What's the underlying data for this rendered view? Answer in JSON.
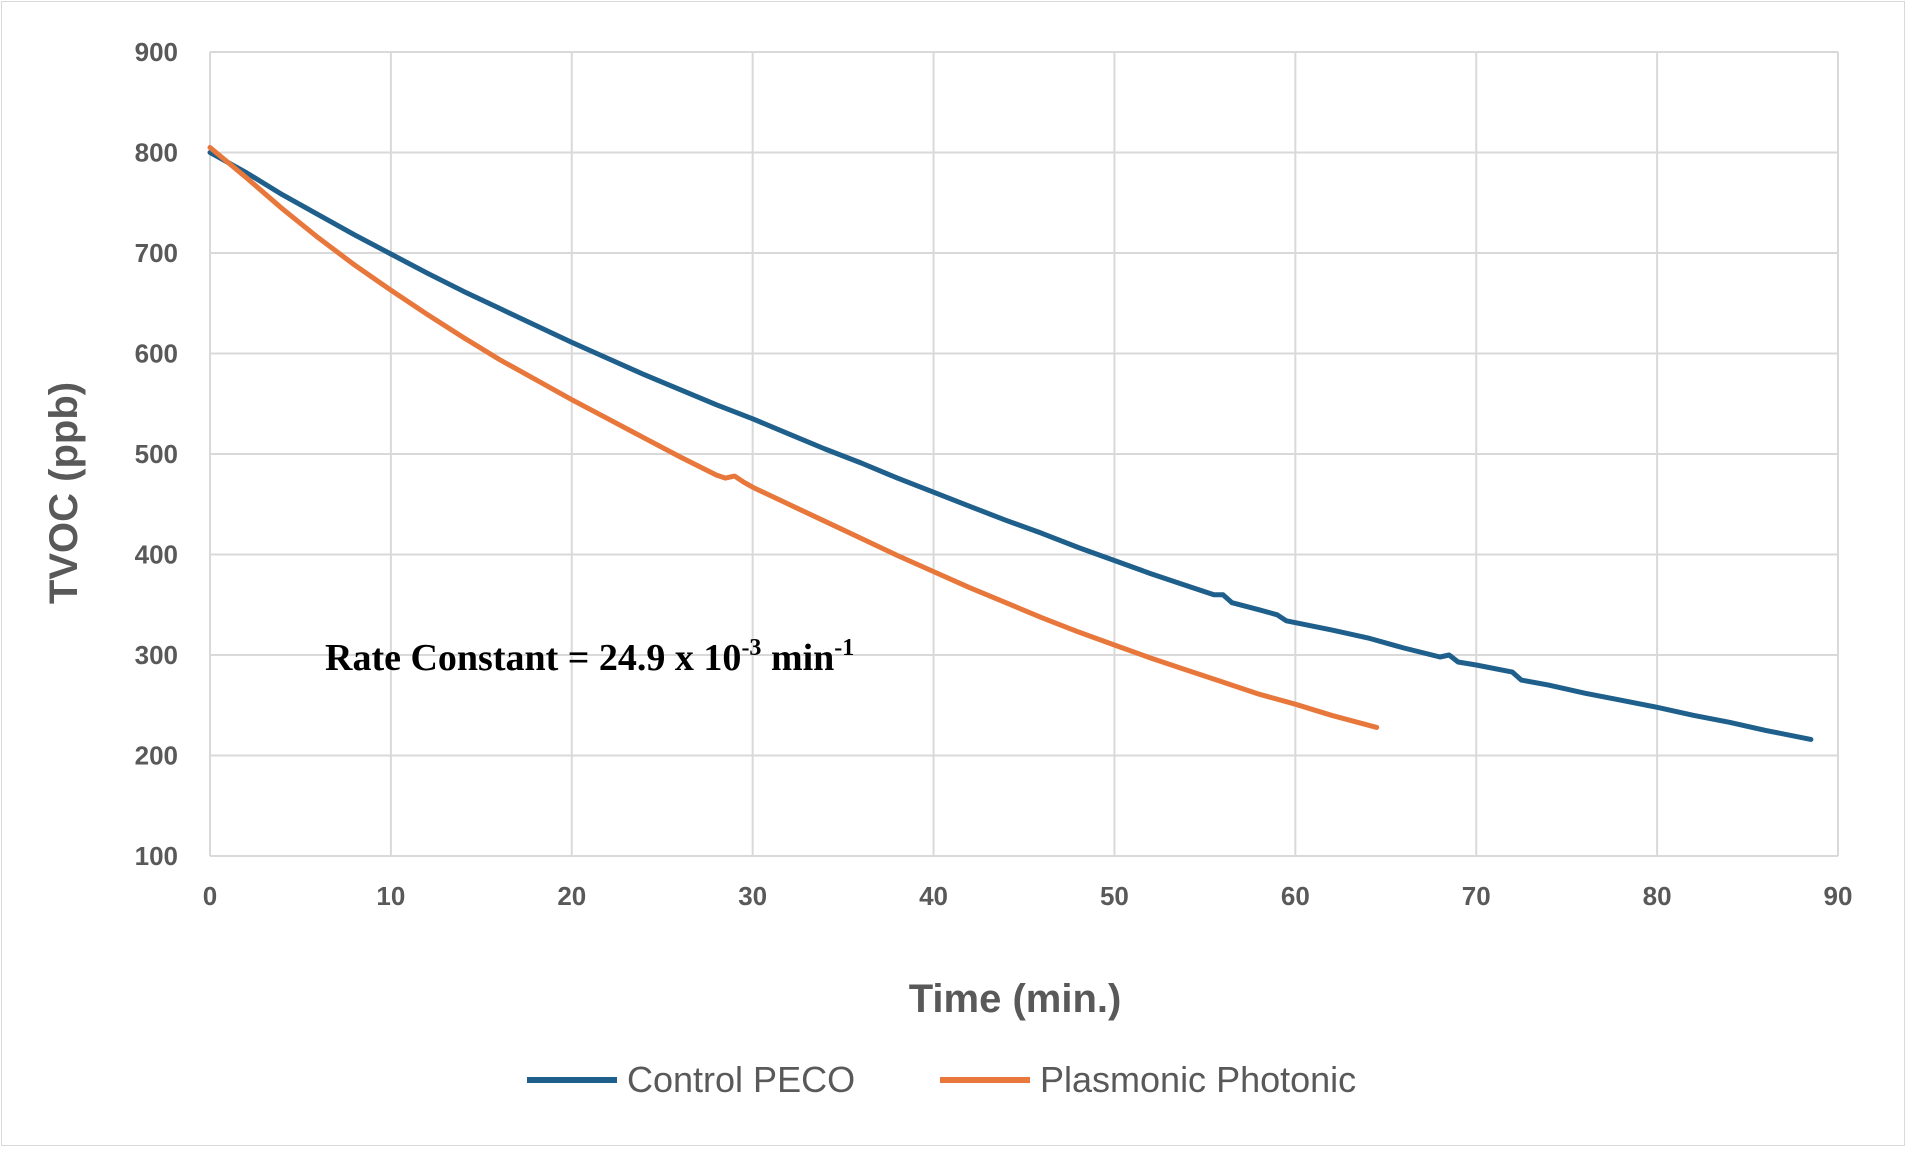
{
  "chart_data": {
    "type": "line",
    "title": "",
    "xlabel": "Time (min.)",
    "ylabel": "TVOC (ppb)",
    "xlim": [
      0,
      90
    ],
    "ylim": [
      100,
      900
    ],
    "x_ticks": [
      0,
      10,
      20,
      30,
      40,
      50,
      60,
      70,
      80,
      90
    ],
    "y_ticks": [
      100,
      200,
      300,
      400,
      500,
      600,
      700,
      800,
      900
    ],
    "grid": true,
    "legend_position": "bottom",
    "annotation": {
      "prefix": "Rate Constant = 24.9 x 10",
      "exp1": "-3",
      "middle": " min",
      "exp2": "-1"
    },
    "series": [
      {
        "name": "Control PECO",
        "color": "#1f5f8b",
        "x": [
          0,
          2,
          4,
          6,
          8,
          10,
          12,
          14,
          16,
          18,
          20,
          22,
          24,
          26,
          28,
          30,
          32,
          34,
          36,
          38,
          40,
          42,
          44,
          46,
          48,
          50,
          52,
          54,
          55.5,
          56,
          56.5,
          58,
          59,
          59.5,
          62,
          64,
          66,
          68,
          68.5,
          69,
          70,
          72,
          72.5,
          74,
          76,
          78,
          80,
          82,
          84,
          86,
          88.5
        ],
        "y": [
          800,
          780,
          758,
          738,
          718,
          699,
          680,
          662,
          645,
          628,
          611,
          595,
          579,
          564,
          549,
          535,
          520,
          505,
          491,
          476,
          462,
          448,
          434,
          421,
          407,
          394,
          381,
          369,
          360,
          360,
          352,
          345,
          340,
          334,
          325,
          317,
          307,
          298,
          300,
          293,
          290,
          283,
          275,
          270,
          262,
          255,
          248,
          240,
          233,
          225,
          216
        ]
      },
      {
        "name": "Plasmonic Photonic",
        "color": "#e8773b",
        "x": [
          0,
          2,
          4,
          6,
          8,
          10,
          12,
          14,
          16,
          18,
          20,
          22,
          24,
          26,
          28,
          28.5,
          29,
          29.5,
          30,
          32,
          34,
          36,
          38,
          40,
          42,
          44,
          46,
          48,
          50,
          52,
          54,
          56,
          58,
          60,
          62,
          64.5
        ],
        "y": [
          805,
          775,
          744,
          715,
          688,
          663,
          639,
          616,
          594,
          574,
          554,
          535,
          516,
          497,
          479,
          476,
          478,
          472,
          467,
          450,
          433,
          416,
          399,
          383,
          367,
          352,
          337,
          323,
          310,
          297,
          285,
          273,
          261,
          251,
          240,
          228
        ]
      }
    ]
  }
}
